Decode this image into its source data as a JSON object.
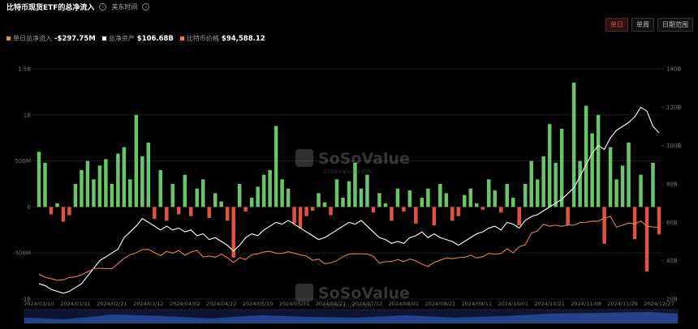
{
  "header": {
    "title": "比特币现货ETF的总净流入",
    "timezone": "美东时间",
    "buttons": [
      "单日",
      "单周",
      "日期范围"
    ]
  },
  "watermark": {
    "brand": "SoSoValue",
    "site": "sosovalue.com"
  },
  "chart_data": {
    "type": "bar",
    "categories": [
      "2024/01/10",
      null,
      null,
      null,
      null,
      null,
      "2024/01/31",
      null,
      null,
      null,
      null,
      null,
      "2024/02/21",
      null,
      null,
      null,
      null,
      null,
      "2024/03/12",
      null,
      null,
      null,
      null,
      null,
      "2024/04/02",
      null,
      null,
      null,
      null,
      null,
      "2024/04/22",
      null,
      null,
      null,
      null,
      null,
      "2024/05/10",
      null,
      null,
      null,
      null,
      null,
      "2024/05/31",
      null,
      null,
      null,
      null,
      null,
      "2024/06/21",
      null,
      null,
      null,
      null,
      null,
      "2024/07/12",
      null,
      null,
      null,
      null,
      null,
      "2024/08/01",
      null,
      null,
      null,
      null,
      null,
      "2024/08/21",
      null,
      null,
      null,
      null,
      null,
      "2024/09/11",
      null,
      null,
      null,
      null,
      null,
      "2024/10/01",
      null,
      null,
      null,
      null,
      null,
      "2024/10/21",
      null,
      null,
      null,
      null,
      null,
      "2024/11/08",
      null,
      null,
      null,
      null,
      null,
      "2024/11/29",
      null,
      null,
      null,
      null,
      null,
      "2024/12/27"
    ],
    "series": [
      {
        "name": "单日总净流入",
        "latest_label": "-$297.75M",
        "color": "#6cc46a",
        "negative_color": "#e0533f",
        "values": [
          600,
          480,
          -80,
          40,
          -160,
          -90,
          250,
          400,
          500,
          300,
          450,
          520,
          250,
          580,
          650,
          300,
          1000,
          550,
          700,
          -130,
          400,
          -150,
          250,
          -80,
          350,
          -100,
          200,
          300,
          -120,
          150,
          60,
          -150,
          -550,
          250,
          -50,
          100,
          220,
          350,
          400,
          880,
          300,
          200,
          -180,
          -230,
          -100,
          -40,
          150,
          50,
          -90,
          300,
          100,
          280,
          480,
          200,
          350,
          -60,
          150,
          40,
          -150,
          200,
          -50,
          180,
          -180,
          100,
          200,
          -200,
          250,
          150,
          -150,
          -100,
          130,
          200,
          40,
          -30,
          300,
          180,
          -60,
          250,
          100,
          -200,
          250,
          500,
          300,
          550,
          900,
          480,
          850,
          -200,
          1350,
          500,
          1100,
          800,
          1000,
          -400,
          650,
          300,
          450,
          700,
          -350,
          350,
          -700,
          480,
          -297.75
        ]
      },
      {
        "name": "总净资产",
        "latest_label": "$106.68B",
        "axis": "y2",
        "color": "#ffffff",
        "values": [
          28,
          27,
          25,
          24,
          23,
          24,
          26,
          28,
          32,
          36,
          40,
          42,
          44,
          46,
          52,
          55,
          58,
          62,
          60,
          58,
          56,
          58,
          56,
          57,
          55,
          56,
          53,
          54,
          51,
          52,
          50,
          48,
          45,
          48,
          52,
          54,
          53,
          56,
          58,
          60,
          59,
          61,
          59,
          57,
          55,
          53,
          51,
          52,
          54,
          56,
          58,
          60,
          59,
          61,
          58,
          55,
          52,
          51,
          49,
          50,
          49,
          52,
          53,
          55,
          52,
          54,
          52,
          51,
          50,
          48,
          50,
          52,
          54,
          55,
          57,
          58,
          56,
          60,
          59,
          57,
          61,
          63,
          64,
          66,
          68,
          70,
          72,
          75,
          78,
          84,
          90,
          96,
          100,
          98,
          104,
          108,
          110,
          112,
          115,
          120,
          118,
          110,
          106.68
        ]
      },
      {
        "name": "比特币价格",
        "latest_label": "$94,588.12",
        "axis": "y3",
        "color": "#e8823a",
        "values": [
          46100,
          42700,
          41300,
          39600,
          40000,
          42500,
          43100,
          45300,
          48300,
          51800,
          52100,
          51700,
          51700,
          57000,
          62400,
          66100,
          68300,
          71500,
          71800,
          68400,
          65200,
          69700,
          67800,
          70600,
          65600,
          69000,
          70700,
          63800,
          64900,
          63500,
          66800,
          63100,
          58000,
          63100,
          61200,
          66200,
          67100,
          69100,
          69800,
          67700,
          67600,
          69300,
          67800,
          66000,
          64900,
          60300,
          61600,
          56700,
          57800,
          60000,
          64100,
          66800,
          67200,
          67100,
          66900,
          64600,
          57500,
          58900,
          59100,
          61200,
          59100,
          61800,
          59800,
          56400,
          53900,
          58200,
          60500,
          62700,
          62100,
          63300,
          63400,
          65800,
          62800,
          64100,
          67600,
          66800,
          67400,
          72400,
          68200,
          74500,
          76600,
          88700,
          91000,
          98000,
          95900,
          97000,
          95800,
          97300,
          96900,
          99900,
          100000,
          101200,
          101100,
          104500,
          106100,
          95000,
          97000,
          99300,
          98200,
          101400,
          96000,
          95100,
          94588.12
        ]
      }
    ],
    "ylim": [
      -1000,
      1500
    ],
    "yticks": [
      {
        "value": -1000,
        "label": "-1B"
      },
      {
        "value": -500,
        "label": "-500M"
      },
      0,
      {
        "value": 500,
        "label": "500M"
      },
      {
        "value": 1000,
        "label": "1B"
      },
      {
        "value": 1500,
        "label": "1.5B"
      }
    ],
    "y2lim": [
      20,
      140
    ],
    "y2ticks": [
      {
        "value": 20,
        "label": "20B"
      },
      {
        "value": 40,
        "label": "40B"
      },
      {
        "value": 60,
        "label": "60B"
      },
      {
        "value": 80,
        "label": "80B"
      },
      {
        "value": 100,
        "label": "100B"
      },
      {
        "value": 120,
        "label": "120B"
      },
      {
        "value": 140,
        "label": "140B"
      }
    ],
    "y3lim": [
      20000,
      260000
    ],
    "grid": true
  }
}
